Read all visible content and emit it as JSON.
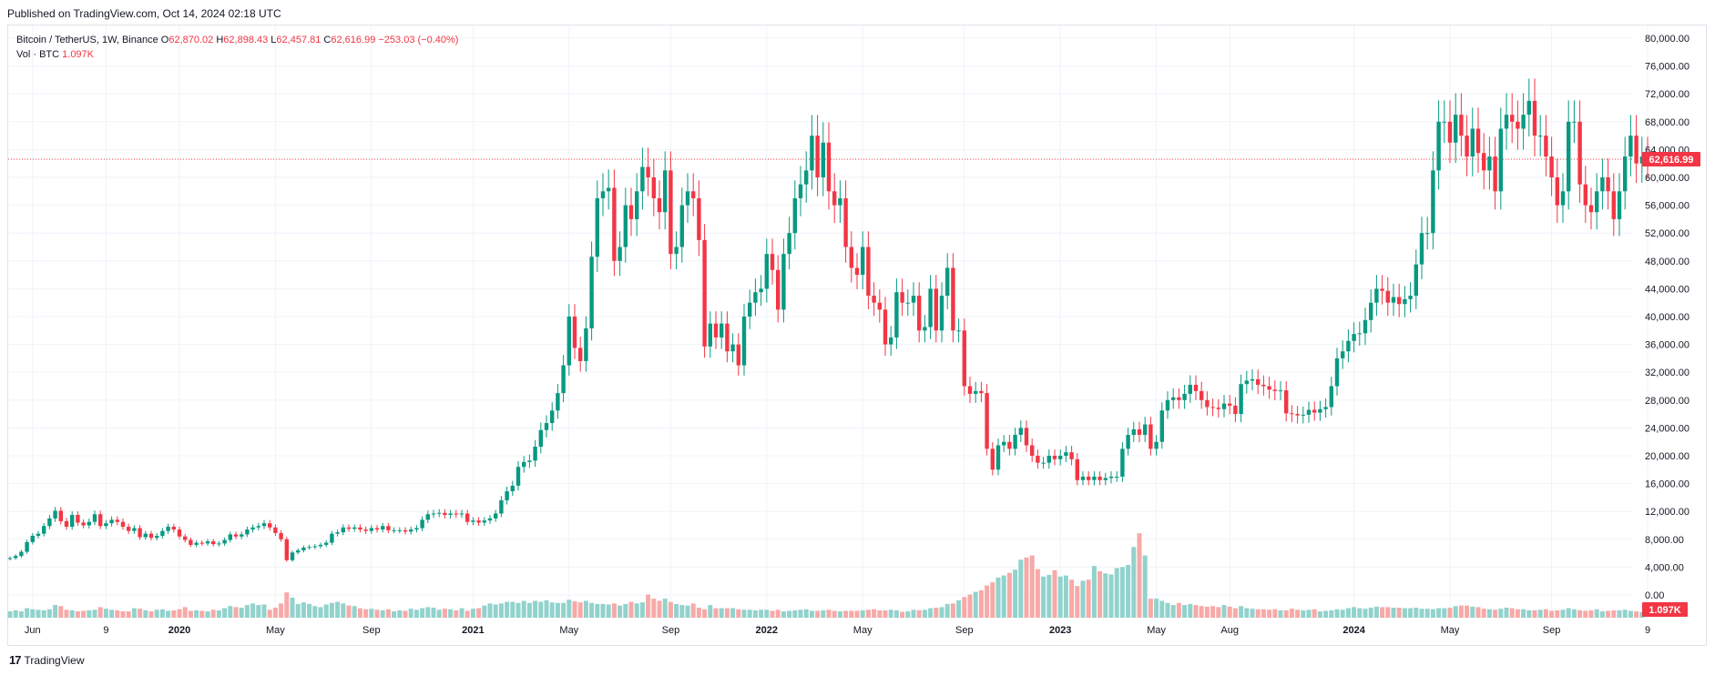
{
  "header": {
    "published": "Published on TradingView.com, Oct 14, 2024 02:18 UTC"
  },
  "legend": {
    "symbol": "Bitcoin / TetherUS, 1W, Binance",
    "o_label": "O",
    "o_value": "62,870.02",
    "h_label": "H",
    "h_value": "62,898.43",
    "l_label": "L",
    "l_value": "62,457.81",
    "c_label": "C",
    "c_value": "62,616.99",
    "change": "−253.03 (−0.40%)",
    "vol_label": "Vol · BTC",
    "vol_value": "1.097K"
  },
  "footer": {
    "logo_mark": "17",
    "logo_text": "TradingView"
  },
  "colors": {
    "up": "#089981",
    "down": "#f23645",
    "vol_up": "#92d2cc",
    "vol_down": "#f7a9a7",
    "grid": "#f0f3fa"
  },
  "chart_data": {
    "type": "candlestick",
    "interval": "1W",
    "price_axis": {
      "min": 0,
      "max": 80000,
      "position": "right",
      "ticks": [
        80000,
        76000,
        72000,
        68000,
        64000,
        60000,
        56000,
        52000,
        48000,
        44000,
        40000,
        36000,
        32000,
        28000,
        24000,
        20000,
        16000,
        12000,
        8000,
        4000,
        0
      ],
      "tick_labels": [
        "80,000.00",
        "76,000.00",
        "72,000.00",
        "68,000.00",
        "64,000.00",
        "60,000.00",
        "56,000.00",
        "52,000.00",
        "48,000.00",
        "44,000.00",
        "40,000.00",
        "36,000.00",
        "32,000.00",
        "28,000.00",
        "24,000.00",
        "20,000.00",
        "16,000.00",
        "12,000.00",
        "8,000.00",
        "4,000.00",
        "0.00"
      ]
    },
    "last_price": {
      "value": 62616.99,
      "label": "62,616.99"
    },
    "volume_badge": {
      "label": "1.097K"
    },
    "time_axis": {
      "ticks": [
        {
          "label": "Jun",
          "week": 4,
          "bold": false
        },
        {
          "label": "9",
          "week": 17,
          "bold": false
        },
        {
          "label": "2020",
          "week": 30,
          "bold": true
        },
        {
          "label": "May",
          "week": 47,
          "bold": false
        },
        {
          "label": "Sep",
          "week": 64,
          "bold": false
        },
        {
          "label": "2021",
          "week": 82,
          "bold": true
        },
        {
          "label": "May",
          "week": 99,
          "bold": false
        },
        {
          "label": "Sep",
          "week": 117,
          "bold": false
        },
        {
          "label": "2022",
          "week": 134,
          "bold": true
        },
        {
          "label": "May",
          "week": 151,
          "bold": false
        },
        {
          "label": "Sep",
          "week": 169,
          "bold": false
        },
        {
          "label": "2023",
          "week": 186,
          "bold": true
        },
        {
          "label": "May",
          "week": 203,
          "bold": false
        },
        {
          "label": "Aug",
          "week": 216,
          "bold": false
        },
        {
          "label": "2024",
          "week": 238,
          "bold": true
        },
        {
          "label": "May",
          "week": 255,
          "bold": false
        },
        {
          "label": "Sep",
          "week": 273,
          "bold": false
        },
        {
          "label": "9",
          "week": 290,
          "bold": false
        }
      ]
    },
    "closes": [
      5300,
      5600,
      6200,
      7600,
      8500,
      8800,
      9900,
      11000,
      12100,
      10600,
      9800,
      11500,
      10400,
      10000,
      10500,
      11600,
      9900,
      10300,
      10800,
      10500,
      9800,
      9200,
      9600,
      8300,
      8800,
      8200,
      8500,
      9200,
      9800,
      9400,
      8400,
      7900,
      7200,
      7500,
      7400,
      7700,
      7300,
      7400,
      7900,
      8700,
      8400,
      8700,
      9400,
      9700,
      9900,
      10300,
      9700,
      8900,
      8000,
      5000,
      6100,
      6400,
      6800,
      6900,
      7000,
      7200,
      7500,
      8800,
      9000,
      9700,
      9500,
      9700,
      9400,
      9200,
      9600,
      9400,
      9900,
      9300,
      9300,
      9300,
      9100,
      9400,
      9600,
      10800,
      11600,
      11700,
      11800,
      11500,
      11700,
      11600,
      11700,
      10500,
      10700,
      10400,
      10700,
      11000,
      11700,
      13600,
      14900,
      15700,
      18400,
      19100,
      19300,
      21300,
      23700,
      24700,
      26500,
      29000,
      33000,
      40000,
      35500,
      33600,
      38300,
      48600,
      57000,
      58000,
      58500,
      48000,
      50000,
      56000,
      54000,
      58000,
      61500,
      60000,
      57000,
      55000,
      61000,
      49000,
      50000,
      56000,
      58000,
      57000,
      51000,
      35700,
      39000,
      37000,
      39000,
      35000,
      36000,
      33000,
      40000,
      42000,
      43500,
      44000,
      49000,
      46700,
      41000,
      49000,
      52000,
      57000,
      59000,
      61000,
      66000,
      60000,
      65000,
      58000,
      56000,
      57000,
      50000,
      47000,
      46000,
      50000,
      43000,
      42000,
      41000,
      36000,
      37000,
      43500,
      42000,
      42000,
      43000,
      38000,
      38500,
      44000,
      38000,
      43000,
      47000,
      38000,
      38000,
      30000,
      28900,
      29300,
      29000,
      21000,
      18000,
      21500,
      22000,
      21000,
      23000,
      24000,
      21500,
      20000,
      19000,
      19000,
      20000,
      19500,
      20000,
      20500,
      19500,
      16500,
      17000,
      16500,
      17000,
      16500,
      16800,
      17000,
      17000,
      21000,
      23000,
      23800,
      23000,
      24500,
      21000,
      22000,
      26500,
      28000,
      28400,
      28000,
      28900,
      30200,
      29300,
      28000,
      27000,
      26900,
      26700,
      27500,
      27200,
      26000,
      30300,
      30800,
      31000,
      30200,
      30000,
      29500,
      29300,
      29400,
      26100,
      26000,
      25800,
      25900,
      26600,
      26200,
      26700,
      27000,
      30000,
      34000,
      35000,
      36500,
      37500,
      37600,
      39500,
      42000,
      44000,
      43700,
      42000,
      42800,
      41800,
      42500,
      43000,
      47500,
      52000,
      52000,
      61000,
      68000,
      68000,
      65000,
      69000,
      66000,
      63000,
      67000,
      63500,
      61000,
      63000,
      58000,
      67000,
      69000,
      68000,
      67000,
      69000,
      71000,
      66000,
      66000,
      63000,
      60000,
      56000,
      58000,
      68000,
      68000,
      59000,
      56000,
      55000,
      58000,
      60000,
      58000,
      54000,
      58000,
      63000,
      66000,
      62000,
      63000,
      62617
    ],
    "volumes": [
      12,
      14,
      12,
      18,
      16,
      15,
      14,
      16,
      24,
      22,
      15,
      14,
      12,
      13,
      14,
      15,
      20,
      17,
      15,
      14,
      12,
      12,
      18,
      17,
      14,
      12,
      15,
      16,
      13,
      14,
      16,
      20,
      13,
      14,
      13,
      12,
      15,
      14,
      18,
      22,
      20,
      19,
      24,
      27,
      24,
      25,
      15,
      19,
      27,
      48,
      38,
      26,
      29,
      26,
      22,
      20,
      25,
      28,
      30,
      27,
      23,
      22,
      18,
      16,
      17,
      15,
      14,
      16,
      12,
      14,
      13,
      17,
      15,
      18,
      20,
      19,
      15,
      17,
      16,
      14,
      18,
      13,
      17,
      18,
      23,
      27,
      25,
      27,
      30,
      30,
      28,
      32,
      28,
      32,
      30,
      33,
      29,
      28,
      28,
      34,
      31,
      29,
      32,
      28,
      26,
      26,
      25,
      27,
      23,
      26,
      30,
      27,
      29,
      44,
      36,
      32,
      36,
      30,
      26,
      24,
      23,
      27,
      19,
      16,
      24,
      18,
      18,
      18,
      18,
      16,
      15,
      15,
      14,
      15,
      15,
      13,
      15,
      12,
      13,
      14,
      15,
      16,
      13,
      13,
      14,
      15,
      13,
      12,
      13,
      13,
      13,
      14,
      15,
      16,
      14,
      14,
      15,
      14,
      11,
      12,
      15,
      14,
      15,
      18,
      19,
      20,
      26,
      27,
      33,
      39,
      44,
      49,
      52,
      61,
      67,
      76,
      80,
      85,
      91,
      110,
      114,
      118,
      92,
      78,
      81,
      90,
      78,
      80,
      72,
      60,
      70,
      72,
      98,
      88,
      84,
      82,
      94,
      96,
      100,
      134,
      160,
      118,
      36,
      36,
      32,
      28,
      24,
      28,
      24,
      26,
      24,
      22,
      21,
      22,
      20,
      24,
      21,
      18,
      22,
      18,
      17,
      16,
      16,
      15,
      16,
      14,
      14,
      17,
      15,
      14,
      15,
      16,
      12,
      13,
      14,
      16,
      15,
      18,
      20,
      18,
      17,
      19,
      21,
      20,
      20,
      19,
      19,
      18,
      18,
      19,
      17,
      17,
      16,
      18,
      18,
      19,
      22,
      23,
      23,
      21,
      20,
      17,
      16,
      15,
      17,
      19,
      18,
      16,
      16,
      14,
      14,
      15,
      16,
      13,
      14,
      15,
      18,
      16,
      14,
      13,
      14,
      16,
      12,
      13,
      14,
      14,
      15,
      13,
      12,
      11
    ]
  }
}
